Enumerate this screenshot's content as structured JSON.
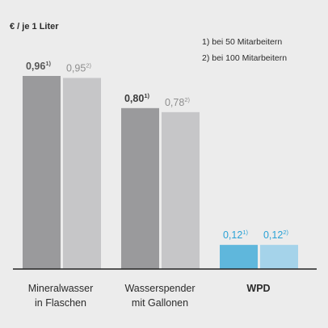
{
  "chart_data": {
    "type": "bar",
    "unit_label": "€ / je 1 Liter",
    "footnotes": [
      "1) bei 50 Mitarbeitern",
      "2) bei 100 Mitarbeitern"
    ],
    "categories": [
      {
        "lines": [
          "Mineralwasser",
          "in Flaschen"
        ],
        "bold": false
      },
      {
        "lines": [
          "Wasserspender",
          "mit Gallonen"
        ],
        "bold": false
      },
      {
        "lines": [
          "WPD"
        ],
        "bold": true
      }
    ],
    "series": [
      {
        "name": "1)",
        "values": [
          0.96,
          0.8,
          0.12
        ],
        "labels": [
          "0,96",
          "0,80",
          "0,12"
        ],
        "marker": "1)"
      },
      {
        "name": "2)",
        "values": [
          0.95,
          0.78,
          0.12
        ],
        "labels": [
          "0,95",
          "0,78",
          "0,12"
        ],
        "marker": "2)"
      }
    ],
    "ylim": [
      0,
      1.0
    ],
    "grid": false,
    "colors": {
      "series1": [
        "#9a9a9c",
        "#9a9a9c",
        "#5fb7dc"
      ],
      "series2": [
        "#c6c6c8",
        "#c6c6c8",
        "#a5d3ea"
      ],
      "label1": [
        "#555555",
        "#3a3a3a",
        "#2aa2d6"
      ],
      "label2": [
        "#8e8e8e",
        "#8e8e8e",
        "#2aa2d6"
      ],
      "axis": "#222222"
    }
  }
}
